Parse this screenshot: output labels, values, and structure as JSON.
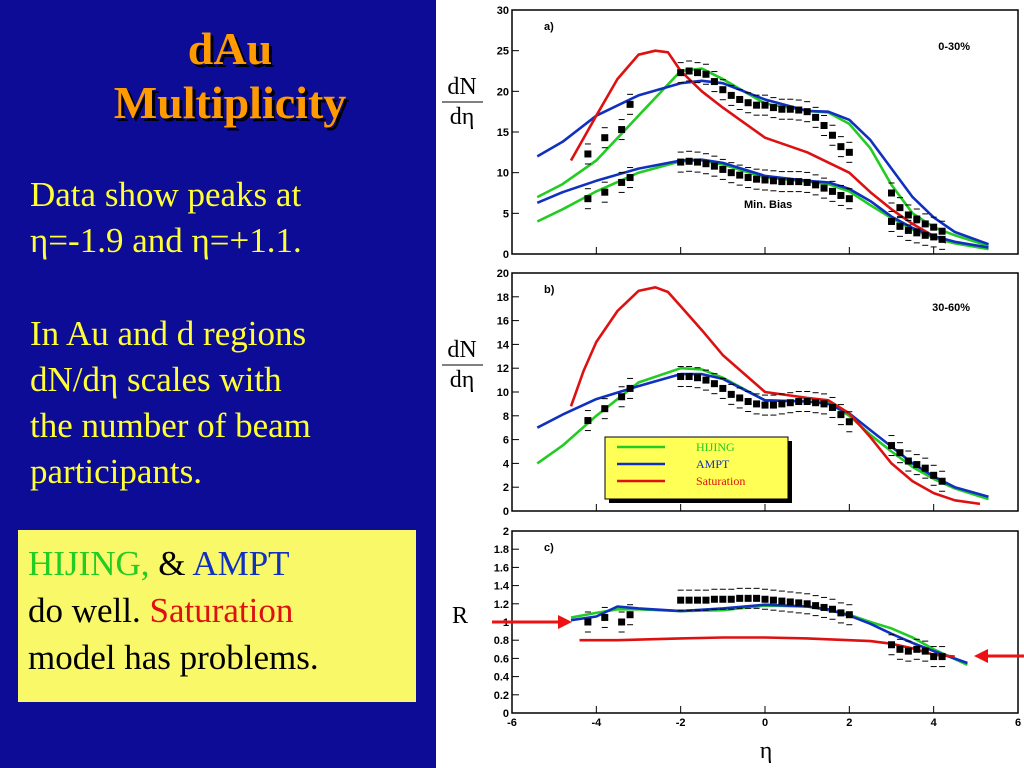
{
  "slide": {
    "title_line1": "dAu",
    "title_line2": "Multiplicity",
    "para1_line1": "Data show peaks at",
    "para1_line2": "η=-1.9 and η=+1.1.",
    "para2_line1": "In Au and d regions",
    "para2_line2": "dN/dη scales with",
    "para2_line3": "the number of  beam",
    "para2_line4": "participants.",
    "note_hijing": "HIJING,",
    "note_amp": " & ",
    "note_ampt": "AMPT",
    "note_do_well": "do well. ",
    "note_saturation": "Saturation",
    "note_line3": "model has problems."
  },
  "colors": {
    "slide_bg": "#0c0c96",
    "title": "#ff9a00",
    "body_text": "#ffff33",
    "note_bg": "#f8f868",
    "hijing": "#22cc22",
    "ampt": "#1030c0",
    "saturation": "#dd1111"
  },
  "chart_data": [
    {
      "type": "line",
      "panel_label": "a)",
      "centrality_label": "0-30%",
      "annotation": "Min. Bias",
      "ylabel_num": "dN",
      "ylabel_den": "dη",
      "xlim": [
        -6,
        6
      ],
      "ylim": [
        0,
        30
      ],
      "y_ticks": [
        "0",
        "5",
        "10",
        "15",
        "20",
        "25",
        "30"
      ],
      "series": [
        {
          "name": "HIJING",
          "color": "#22cc22",
          "x": [
            -5.4,
            -4.8,
            -4,
            -3,
            -2,
            -1.5,
            -1,
            0,
            1,
            1.5,
            2,
            2.5,
            3,
            3.5,
            4,
            4.5,
            5.3
          ],
          "y": [
            7,
            8.6,
            11.5,
            17,
            22.5,
            22.8,
            21.5,
            18.5,
            17.6,
            17.4,
            16,
            13,
            8.5,
            5,
            3.3,
            2.3,
            1
          ]
        },
        {
          "name": "AMPT",
          "color": "#1030c0",
          "x": [
            -5.4,
            -4.8,
            -4,
            -3,
            -2,
            -1.5,
            -1,
            0,
            1,
            1.5,
            2,
            2.5,
            3,
            3.5,
            4,
            4.5,
            5.3
          ],
          "y": [
            12,
            13.8,
            17,
            19.5,
            21,
            21.3,
            21,
            19,
            17.6,
            17.5,
            16.5,
            14,
            10.5,
            7,
            4.5,
            2.7,
            1.2
          ]
        },
        {
          "name": "Saturation",
          "color": "#dd1111",
          "x": [
            -4.6,
            -4,
            -3.5,
            -3,
            -2.6,
            -2.3,
            -2,
            -1.5,
            -1,
            0,
            1,
            2,
            2.5,
            3,
            3.5,
            4,
            4.3
          ],
          "y": [
            11.5,
            17,
            21.5,
            24.5,
            25,
            24.8,
            22.5,
            20,
            18,
            14.3,
            12.5,
            10,
            7.6,
            5.5,
            3.7,
            2.2,
            1.4
          ]
        },
        {
          "name": "HIJING (Min. Bias)",
          "color": "#22cc22",
          "x": [
            -5.4,
            -4.8,
            -4,
            -3,
            -2,
            -1.5,
            -1,
            0,
            1,
            1.5,
            2,
            2.5,
            3,
            3.5,
            4,
            4.5,
            5.3
          ],
          "y": [
            4,
            5.5,
            7.7,
            10,
            11.4,
            11.5,
            11,
            9.4,
            8.9,
            8.6,
            7.7,
            6,
            4.4,
            3,
            2,
            1.3,
            0.6
          ]
        },
        {
          "name": "AMPT (Min. Bias)",
          "color": "#1030c0",
          "x": [
            -5.4,
            -4.8,
            -4,
            -3,
            -2,
            -1.5,
            -1,
            0,
            1,
            1.5,
            2,
            2.5,
            3,
            3.5,
            4,
            4.5,
            5.3
          ],
          "y": [
            6.3,
            7.6,
            9,
            10.5,
            11.5,
            11.6,
            11.2,
            9.6,
            9,
            8.8,
            8,
            6.5,
            4.6,
            3.2,
            2.2,
            1.5,
            0.8
          ]
        }
      ],
      "data_points": [
        {
          "x": [
            -4.2,
            -3.8,
            -3.4,
            -3.2,
            -2,
            -1.8,
            -1.6,
            -1.4,
            -1.2,
            -1,
            -0.8,
            -0.6,
            -0.4,
            -0.2,
            0,
            0.2,
            0.4,
            0.6,
            0.8,
            1,
            1.2,
            1.4,
            1.6,
            1.8,
            2,
            3,
            3.2,
            3.4,
            3.6,
            3.8,
            4,
            4.2
          ],
          "y": [
            12.3,
            14.3,
            15.3,
            18.4,
            22.3,
            22.5,
            22.3,
            22.1,
            21.2,
            20.2,
            19.5,
            19,
            18.6,
            18.3,
            18.3,
            18,
            17.8,
            17.8,
            17.7,
            17.5,
            16.8,
            15.8,
            14.6,
            13.2,
            12.5,
            7.5,
            5.7,
            4.8,
            4.3,
            3.7,
            3.3,
            2.8
          ]
        },
        {
          "x": [
            -4.2,
            -3.8,
            -3.4,
            -3.2,
            -2,
            -1.8,
            -1.6,
            -1.4,
            -1.2,
            -1,
            -0.8,
            -0.6,
            -0.4,
            -0.2,
            0,
            0.2,
            0.4,
            0.6,
            0.8,
            1,
            1.2,
            1.4,
            1.6,
            1.8,
            2,
            3,
            3.2,
            3.4,
            3.6,
            3.8,
            4,
            4.2
          ],
          "y": [
            6.8,
            7.6,
            8.8,
            9.4,
            11.3,
            11.4,
            11.3,
            11.1,
            10.8,
            10.4,
            10,
            9.7,
            9.4,
            9.2,
            9.1,
            9,
            8.9,
            8.9,
            8.9,
            8.8,
            8.5,
            8.1,
            7.7,
            7.2,
            6.8,
            4,
            3.4,
            2.9,
            2.6,
            2.3,
            2.1,
            1.8
          ]
        }
      ]
    },
    {
      "type": "line",
      "panel_label": "b)",
      "centrality_label": "30-60%",
      "ylabel_num": "dN",
      "ylabel_den": "dη",
      "xlim": [
        -6,
        6
      ],
      "ylim": [
        0,
        20
      ],
      "y_ticks": [
        "0",
        "2",
        "4",
        "6",
        "8",
        "10",
        "12",
        "14",
        "16",
        "18",
        "20"
      ],
      "legend": [
        "HIJING",
        "AMPT",
        "Saturation"
      ],
      "legend_position": "center-right",
      "series": [
        {
          "name": "HIJING",
          "color": "#22cc22",
          "x": [
            -5.4,
            -4.8,
            -4,
            -3,
            -2,
            -1.5,
            -1,
            0,
            1,
            1.5,
            2,
            2.5,
            3,
            3.5,
            4,
            4.5,
            5.3
          ],
          "y": [
            4,
            5.5,
            8,
            10.8,
            12,
            11.9,
            11.2,
            9.3,
            9.2,
            9.1,
            8,
            6.4,
            5,
            3.7,
            2.7,
            1.9,
            1
          ]
        },
        {
          "name": "AMPT",
          "color": "#1030c0",
          "x": [
            -5.4,
            -4.8,
            -4,
            -3,
            -2,
            -1.5,
            -1,
            0,
            1,
            1.5,
            2,
            2.5,
            3,
            3.5,
            4,
            4.5,
            5.3
          ],
          "y": [
            7,
            8.1,
            9.4,
            10.5,
            11.5,
            11.5,
            11.1,
            9.3,
            9.2,
            9,
            8.2,
            6.8,
            5.4,
            4,
            2.9,
            2,
            1.2
          ]
        },
        {
          "name": "Saturation",
          "color": "#dd1111",
          "x": [
            -4.6,
            -4.3,
            -4,
            -3.5,
            -3,
            -2.6,
            -2.3,
            -2,
            -1.5,
            -1,
            0,
            1,
            1.5,
            2,
            2.5,
            3,
            3.5,
            4,
            4.5,
            5.1
          ],
          "y": [
            8.8,
            11.8,
            14.2,
            16.8,
            18.5,
            18.8,
            18.4,
            17.2,
            15.2,
            13.1,
            10,
            9.5,
            9.3,
            8.2,
            6.2,
            4,
            2.5,
            1.5,
            0.9,
            0.6
          ]
        }
      ],
      "data_points": [
        {
          "x": [
            -4.2,
            -3.8,
            -3.4,
            -3.2,
            -2,
            -1.8,
            -1.6,
            -1.4,
            -1.2,
            -1,
            -0.8,
            -0.6,
            -0.4,
            -0.2,
            0,
            0.2,
            0.4,
            0.6,
            0.8,
            1,
            1.2,
            1.4,
            1.6,
            1.8,
            2,
            3,
            3.2,
            3.4,
            3.6,
            3.8,
            4,
            4.2
          ],
          "y": [
            7.6,
            8.6,
            9.6,
            10.3,
            11.3,
            11.3,
            11.2,
            11,
            10.7,
            10.3,
            9.8,
            9.5,
            9.2,
            9,
            8.9,
            8.9,
            9,
            9.1,
            9.2,
            9.2,
            9.1,
            9,
            8.7,
            8.1,
            7.5,
            5.5,
            4.9,
            4.2,
            3.9,
            3.6,
            3,
            2.5
          ]
        }
      ]
    },
    {
      "type": "line",
      "panel_label": "c)",
      "ylabel": "R",
      "xlabel": "η",
      "xlim": [
        -6,
        6
      ],
      "ylim": [
        0,
        2
      ],
      "x_ticks": [
        "-6",
        "-4",
        "-2",
        "0",
        "2",
        "4",
        "6"
      ],
      "y_ticks": [
        "0",
        "0.2",
        "0.4",
        "0.6",
        "0.8",
        "1",
        "1.2",
        "1.4",
        "1.6",
        "1.8",
        "2"
      ],
      "series": [
        {
          "name": "HIJING",
          "color": "#22cc22",
          "x": [
            -4.6,
            -4,
            -3.5,
            -3,
            -2,
            -1,
            0,
            1,
            1.5,
            2,
            2.5,
            3,
            3.5,
            4,
            4.8
          ],
          "y": [
            1.05,
            1.1,
            1.14,
            1.14,
            1.12,
            1.13,
            1.18,
            1.17,
            1.13,
            1.08,
            1,
            0.93,
            0.83,
            0.7,
            0.53
          ]
        },
        {
          "name": "AMPT",
          "color": "#1030c0",
          "x": [
            -4.6,
            -4,
            -3.5,
            -3,
            -2,
            -1,
            0,
            1,
            1.5,
            2,
            2.5,
            3,
            3.5,
            4,
            4.8
          ],
          "y": [
            1.02,
            1.06,
            1.17,
            1.15,
            1.12,
            1.15,
            1.19,
            1.17,
            1.14,
            1.07,
            0.98,
            0.87,
            0.77,
            0.68,
            0.55
          ]
        },
        {
          "name": "Saturation",
          "color": "#dd1111",
          "x": [
            -4.4,
            -3.5,
            -2,
            -1,
            0,
            1,
            2,
            2.5,
            3,
            3.5,
            4,
            4.5
          ],
          "y": [
            0.8,
            0.8,
            0.82,
            0.83,
            0.83,
            0.82,
            0.8,
            0.79,
            0.76,
            0.71,
            0.64,
            0.62
          ]
        }
      ],
      "data_points": [
        {
          "x": [
            -4.2,
            -3.8,
            -3.4,
            -3.2,
            -2,
            -1.8,
            -1.6,
            -1.4,
            -1.2,
            -1,
            -0.8,
            -0.6,
            -0.4,
            -0.2,
            0,
            0.2,
            0.4,
            0.6,
            0.8,
            1,
            1.2,
            1.4,
            1.6,
            1.8,
            2,
            3,
            3.2,
            3.4,
            3.6,
            3.8,
            4,
            4.2
          ],
          "y": [
            1,
            1.05,
            1,
            1.08,
            1.24,
            1.24,
            1.24,
            1.24,
            1.25,
            1.25,
            1.25,
            1.26,
            1.26,
            1.26,
            1.25,
            1.24,
            1.23,
            1.22,
            1.21,
            1.2,
            1.18,
            1.16,
            1.14,
            1.1,
            1.08,
            0.75,
            0.7,
            0.68,
            0.7,
            0.68,
            0.62,
            0.62
          ]
        }
      ],
      "reference_arrows_at": 1
    }
  ]
}
